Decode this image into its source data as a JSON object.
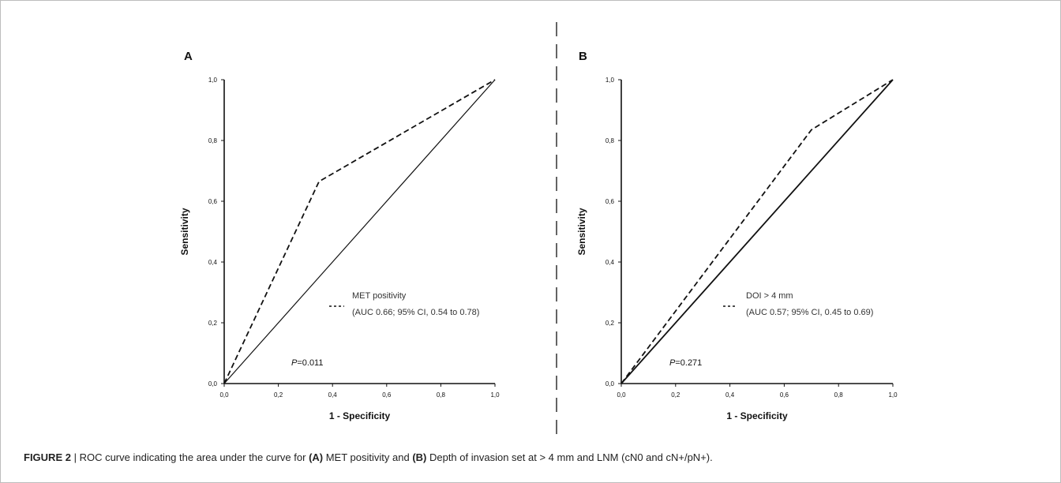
{
  "chart_data": [
    {
      "type": "line",
      "panel_label": "A",
      "xlabel": "1 - Specificity",
      "ylabel": "Sensitivity",
      "xlim": [
        0,
        1
      ],
      "ylim": [
        0,
        1
      ],
      "x_ticks": [
        "0,0",
        "0,2",
        "0,4",
        "0,6",
        "0,8",
        "1,0"
      ],
      "y_ticks": [
        "0,0",
        "0,2",
        "0,4",
        "0,6",
        "0,8",
        "1,0"
      ],
      "grid": false,
      "series": [
        {
          "style": "dashed",
          "x": [
            0,
            0.35,
            1.0
          ],
          "y": [
            0,
            0.665,
            1.0
          ]
        },
        {
          "style": "solid",
          "x": [
            0,
            1
          ],
          "y": [
            0,
            1
          ]
        }
      ],
      "legend": {
        "line1": "MET positivity",
        "line2": "(AUC 0.66; 95% CI, 0.54 to 0.78)",
        "placement": "center-right"
      },
      "annotation": {
        "p_symbol": "P",
        "p_value": "=0.011"
      }
    },
    {
      "type": "line",
      "panel_label": "B",
      "xlabel": "1 - Specificity",
      "ylabel": "Sensitivity",
      "xlim": [
        0,
        1
      ],
      "ylim": [
        0,
        1
      ],
      "x_ticks": [
        "0,0",
        "0,2",
        "0,4",
        "0,6",
        "0,8",
        "1,0"
      ],
      "y_ticks": [
        "0,0",
        "0,2",
        "0,4",
        "0,6",
        "0,8",
        "1,0"
      ],
      "grid": false,
      "series": [
        {
          "style": "dashed",
          "x": [
            0,
            0.7,
            1.0
          ],
          "y": [
            0,
            0.835,
            1.0
          ]
        },
        {
          "style": "solid",
          "x": [
            0,
            1
          ],
          "y": [
            0,
            1
          ]
        }
      ],
      "legend": {
        "line1": "DOI > 4 mm",
        "line2": "(AUC 0.57; 95% CI, 0.45 to 0.69)",
        "placement": "center-right"
      },
      "annotation": {
        "p_symbol": "P",
        "p_value": "=0.271"
      }
    }
  ],
  "caption": {
    "figure_label": "FIGURE 2",
    "separator": " | ",
    "text_1": "ROC curve indicating the area under the curve for ",
    "bold_a": "(A)",
    "text_2": " MET positivity and ",
    "bold_b": "(B)",
    "text_3": " Depth of invasion set at > 4 mm and LNM (cN0 and cN+/pN+)."
  }
}
